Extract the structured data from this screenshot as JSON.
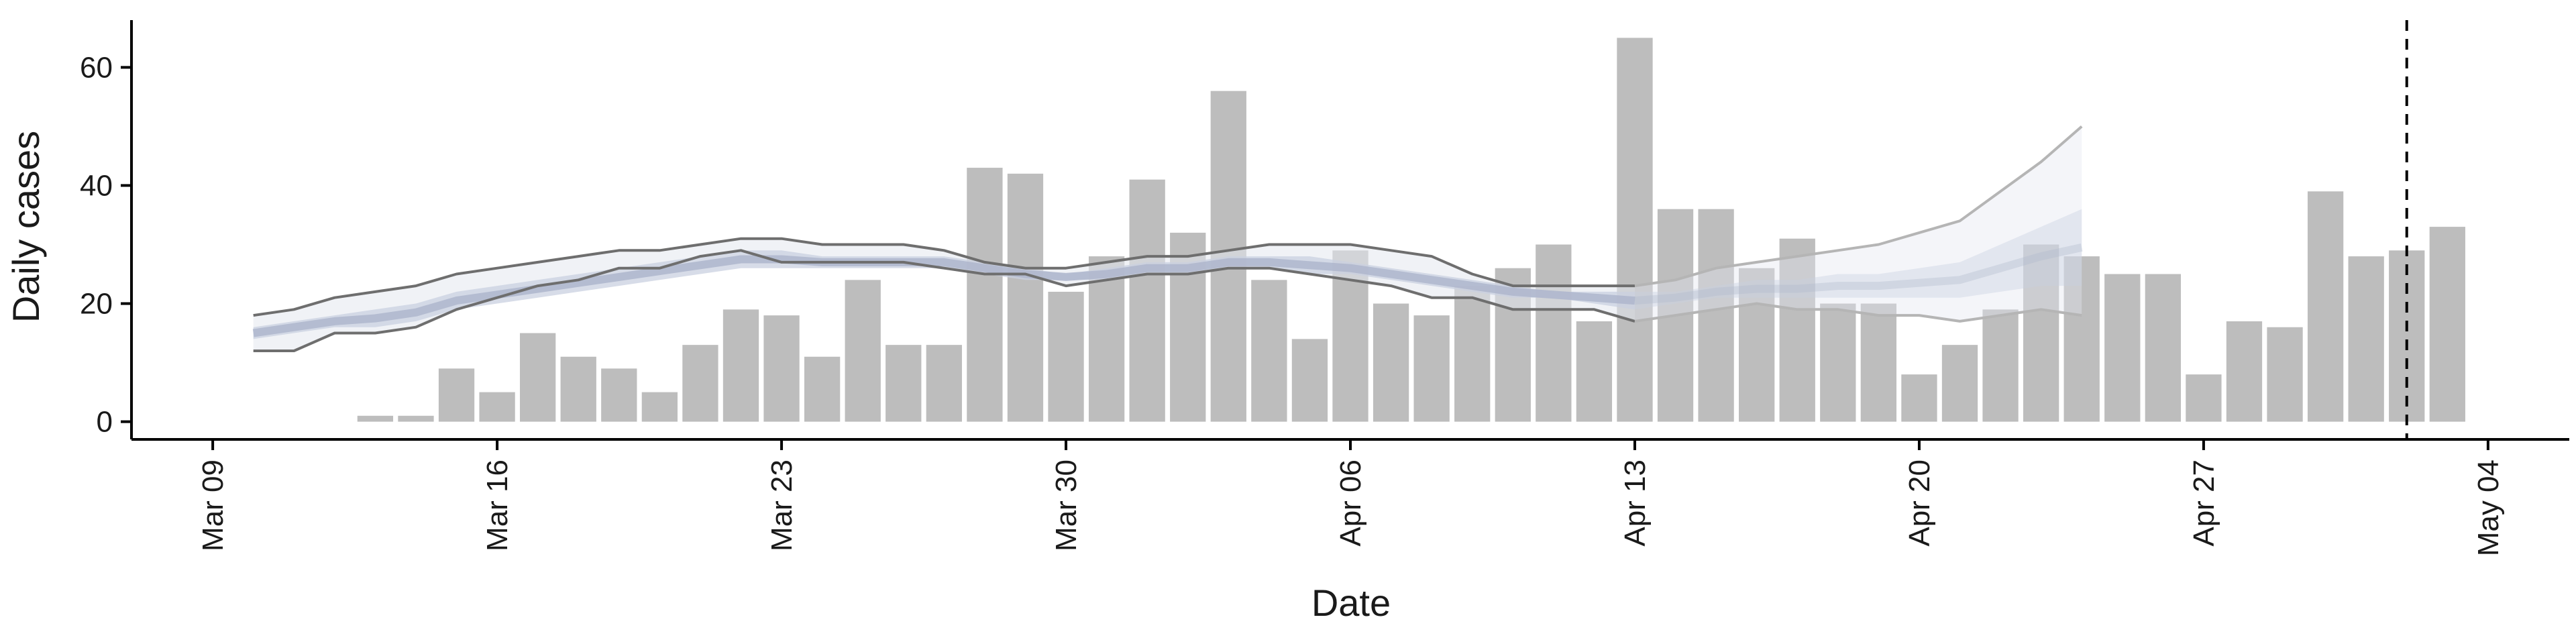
{
  "chart_data": {
    "type": "bar",
    "xlabel": "Date",
    "ylabel": "Daily cases",
    "ylim": [
      -3,
      68
    ],
    "xlim": [
      "2020-03-07",
      "2020-05-06"
    ],
    "grid": false,
    "y_ticks": [
      0,
      20,
      40,
      60
    ],
    "x_ticks": [
      {
        "date": "2020-03-09",
        "label": "Mar 09"
      },
      {
        "date": "2020-03-16",
        "label": "Mar 16"
      },
      {
        "date": "2020-03-23",
        "label": "Mar 23"
      },
      {
        "date": "2020-03-30",
        "label": "Mar 30"
      },
      {
        "date": "2020-04-06",
        "label": "Apr 06"
      },
      {
        "date": "2020-04-13",
        "label": "Apr 13"
      },
      {
        "date": "2020-04-20",
        "label": "Apr 20"
      },
      {
        "date": "2020-04-27",
        "label": "Apr 27"
      },
      {
        "date": "2020-05-04",
        "label": "May 04"
      }
    ],
    "bars": {
      "color": "#bdbdbd",
      "dates": [
        "2020-03-13",
        "2020-03-14",
        "2020-03-15",
        "2020-03-16",
        "2020-03-17",
        "2020-03-18",
        "2020-03-19",
        "2020-03-20",
        "2020-03-21",
        "2020-03-22",
        "2020-03-23",
        "2020-03-24",
        "2020-03-25",
        "2020-03-26",
        "2020-03-27",
        "2020-03-28",
        "2020-03-29",
        "2020-03-30",
        "2020-03-31",
        "2020-04-01",
        "2020-04-02",
        "2020-04-03",
        "2020-04-04",
        "2020-04-05",
        "2020-04-06",
        "2020-04-07",
        "2020-04-08",
        "2020-04-09",
        "2020-04-10",
        "2020-04-11",
        "2020-04-12",
        "2020-04-13",
        "2020-04-14",
        "2020-04-15",
        "2020-04-16",
        "2020-04-17",
        "2020-04-18",
        "2020-04-19",
        "2020-04-20",
        "2020-04-21",
        "2020-04-22",
        "2020-04-23",
        "2020-04-24",
        "2020-04-25",
        "2020-04-26",
        "2020-04-27",
        "2020-04-28",
        "2020-04-29",
        "2020-04-30",
        "2020-05-01",
        "2020-05-02",
        "2020-05-03"
      ],
      "values": [
        1,
        1,
        9,
        5,
        15,
        11,
        9,
        5,
        13,
        19,
        18,
        11,
        24,
        13,
        13,
        43,
        42,
        22,
        28,
        41,
        32,
        56,
        24,
        14,
        29,
        20,
        18,
        23,
        26,
        30,
        17,
        65,
        36,
        36,
        26,
        31,
        20,
        20,
        8,
        13,
        19,
        30,
        28,
        25,
        25,
        8,
        17,
        16,
        39,
        28,
        29,
        33
      ]
    },
    "estimate": {
      "dates": [
        "2020-03-10",
        "2020-03-11",
        "2020-03-12",
        "2020-03-13",
        "2020-03-14",
        "2020-03-15",
        "2020-03-16",
        "2020-03-17",
        "2020-03-18",
        "2020-03-19",
        "2020-03-20",
        "2020-03-21",
        "2020-03-22",
        "2020-03-23",
        "2020-03-24",
        "2020-03-25",
        "2020-03-26",
        "2020-03-27",
        "2020-03-28",
        "2020-03-29",
        "2020-03-30",
        "2020-03-31",
        "2020-04-01",
        "2020-04-02",
        "2020-04-03",
        "2020-04-04",
        "2020-04-05",
        "2020-04-06",
        "2020-04-07",
        "2020-04-08",
        "2020-04-09",
        "2020-04-10",
        "2020-04-11",
        "2020-04-12",
        "2020-04-13",
        "2020-04-14",
        "2020-04-15",
        "2020-04-16",
        "2020-04-17",
        "2020-04-18",
        "2020-04-19",
        "2020-04-20",
        "2020-04-21",
        "2020-04-22",
        "2020-04-23",
        "2020-04-24"
      ],
      "outer_upper": [
        18,
        19,
        21,
        22,
        23,
        25,
        26,
        27,
        28,
        29,
        29,
        30,
        31,
        31,
        30,
        30,
        30,
        29,
        27,
        26,
        26,
        27,
        28,
        28,
        29,
        30,
        30,
        30,
        29,
        28,
        25,
        23,
        23,
        23,
        23,
        24,
        26,
        27,
        28,
        29,
        30,
        32,
        34,
        39,
        44,
        50
      ],
      "outer_lower": [
        12,
        12,
        15,
        15,
        16,
        19,
        21,
        23,
        24,
        26,
        26,
        28,
        29,
        27,
        27,
        27,
        27,
        26,
        25,
        25,
        23,
        24,
        25,
        25,
        26,
        26,
        25,
        24,
        23,
        21,
        21,
        19,
        19,
        19,
        17,
        18,
        19,
        20,
        19,
        19,
        18,
        18,
        17,
        18,
        19,
        18
      ],
      "mid_upper": [
        16,
        17,
        18,
        19,
        20,
        22,
        23,
        24,
        25,
        26,
        27,
        28,
        29,
        29,
        28,
        28,
        28,
        28,
        27,
        26,
        25,
        26,
        27,
        27,
        28,
        28,
        28,
        27,
        26,
        25,
        24,
        23,
        22,
        22,
        22,
        22,
        23,
        24,
        24,
        25,
        25,
        26,
        27,
        30,
        33,
        36
      ],
      "mid_lower": [
        14,
        15,
        16,
        16,
        17,
        19,
        20,
        21,
        22,
        23,
        24,
        25,
        26,
        26,
        26,
        26,
        26,
        26,
        25,
        24,
        24,
        24,
        25,
        25,
        26,
        26,
        25,
        25,
        24,
        23,
        22,
        21,
        21,
        20,
        19,
        20,
        21,
        21,
        21,
        21,
        21,
        21,
        21,
        22,
        23,
        23
      ],
      "median": [
        15,
        16,
        17,
        17.5,
        18.5,
        20.5,
        21.5,
        22.5,
        23.5,
        24.5,
        25.5,
        26.5,
        27.5,
        27.5,
        27,
        27,
        27,
        27,
        26,
        25,
        24.5,
        25,
        26,
        26,
        27,
        27,
        26.5,
        26,
        25,
        24,
        23,
        22,
        21.5,
        21,
        20.5,
        21,
        22,
        22.5,
        22.5,
        23,
        23,
        23.5,
        24,
        26,
        28,
        29.5
      ],
      "nowcast_start": "2020-04-13"
    },
    "reference_line": {
      "date": "2020-05-02",
      "style": "dashed"
    },
    "colors": {
      "bar": "#bdbdbd",
      "outer_line": "#6e6e6e",
      "outer_line_nowcast": "#b5b5b5",
      "band_outer": "#e3e7ef",
      "band_mid": "#c9d0e0",
      "median": "#aeb6cc",
      "axis": "#000000"
    }
  }
}
